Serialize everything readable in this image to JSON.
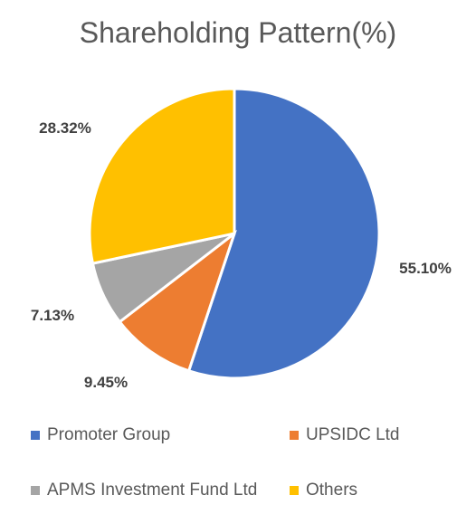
{
  "chart_data": {
    "type": "pie",
    "title": "Shareholding Pattern(%)",
    "categories": [
      "Promoter Group",
      "UPSIDC Ltd",
      "APMS Investment Fund Ltd",
      "Others"
    ],
    "values": [
      55.1,
      9.45,
      7.13,
      28.32
    ],
    "data_labels": [
      "55.10%",
      "9.45%",
      "7.13%",
      "28.32%"
    ],
    "colors": [
      "#4472C4",
      "#ED7D31",
      "#A5A5A5",
      "#FFC000"
    ],
    "legend_position": "bottom"
  }
}
